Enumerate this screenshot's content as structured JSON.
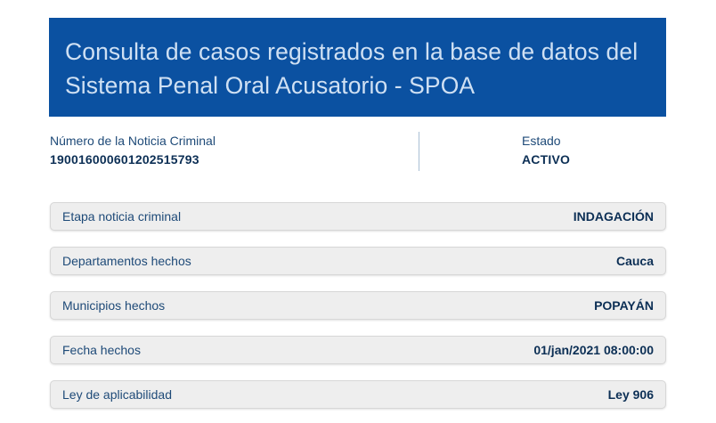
{
  "banner": {
    "title_line1": "Consulta de casos registrados en la base de datos del",
    "title_line2": "Sistema Penal Oral Acusatorio - SPOA"
  },
  "summary": {
    "case_number_label": "Número de la Noticia Criminal",
    "case_number_value": "190016000601202515793",
    "status_label": "Estado",
    "status_value": "ACTIVO"
  },
  "details": [
    {
      "label": "Etapa noticia criminal",
      "value": "INDAGACIÓN"
    },
    {
      "label": "Departamentos hechos",
      "value": "Cauca"
    },
    {
      "label": "Municipios hechos",
      "value": "POPAYÁN"
    },
    {
      "label": "Fecha hechos",
      "value": "01/jan/2021 08:00:00"
    },
    {
      "label": "Ley de aplicabilidad",
      "value": "Ley 906"
    }
  ],
  "colors": {
    "banner_background": "#0b51a1",
    "banner_text": "#cfe0f3",
    "label_text": "#1e4a78",
    "value_text": "#0c2f55",
    "row_background": "#eeeeee"
  }
}
